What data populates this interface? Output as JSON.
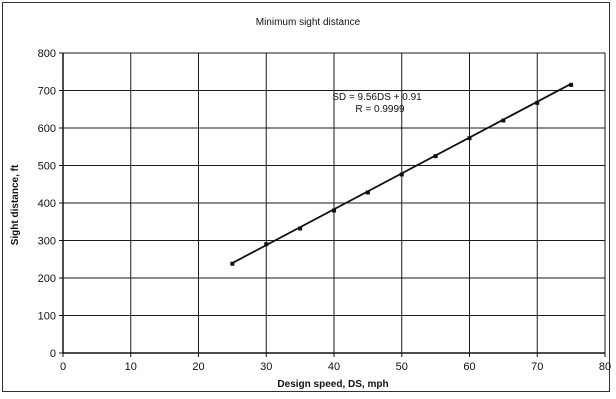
{
  "chart_data": {
    "type": "scatter",
    "title": "Minimum sight distance",
    "xlabel": "Design speed, DS, mph",
    "ylabel": "Sight distance, ft",
    "xlim": [
      0,
      80
    ],
    "ylim": [
      0,
      800
    ],
    "xticks": [
      0,
      10,
      20,
      30,
      40,
      50,
      60,
      70,
      80
    ],
    "yticks": [
      0,
      100,
      200,
      300,
      400,
      500,
      600,
      700,
      800
    ],
    "grid": true,
    "series": [
      {
        "values": [
          {
            "x": 25,
            "y": 238
          },
          {
            "x": 30,
            "y": 290
          },
          {
            "x": 35,
            "y": 332
          },
          {
            "x": 40,
            "y": 380
          },
          {
            "x": 45,
            "y": 428
          },
          {
            "x": 50,
            "y": 476
          },
          {
            "x": 55,
            "y": 525
          },
          {
            "x": 60,
            "y": 573
          },
          {
            "x": 65,
            "y": 620
          },
          {
            "x": 70,
            "y": 667
          },
          {
            "x": 75,
            "y": 715
          }
        ]
      }
    ],
    "trendline": {
      "x_range": [
        25,
        75
      ],
      "slope": 9.56,
      "intercept": 0.91
    },
    "annotations": [
      "SD = 9.56DS + 0.91",
      "R = 0.9999"
    ],
    "colors": {
      "ink": "#111111",
      "grid": "#1a1a1a"
    }
  }
}
